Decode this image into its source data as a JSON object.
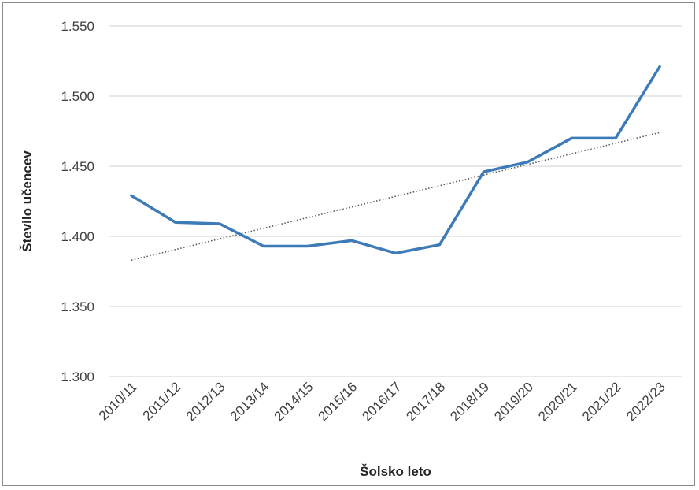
{
  "chart_data": {
    "type": "line",
    "title": "",
    "xlabel": "Šolsko leto",
    "ylabel": "Število učencev",
    "categories": [
      "2010/11",
      "2011/12",
      "2012/13",
      "2013/14",
      "2014/15",
      "2015/16",
      "2016/17",
      "2017/18",
      "2018/19",
      "2019/20",
      "2020/21",
      "2021/22",
      "2022/23"
    ],
    "series": [
      {
        "values": [
          1429,
          1410,
          1409,
          1393,
          1393,
          1397,
          1388,
          1394,
          1446,
          1453,
          1470,
          1470,
          1521
        ]
      }
    ],
    "trendline": {
      "type": "linear",
      "style": "dotted",
      "start": 1383,
      "end": 1474
    },
    "ylim": [
      1300,
      1550
    ],
    "yticks": [
      1300,
      1350,
      1400,
      1450,
      1500,
      1550
    ],
    "ytick_labels": [
      "1.300",
      "1.350",
      "1.400",
      "1.450",
      "1.500",
      "1.550"
    ],
    "grid": true,
    "legend": "none",
    "colors": {
      "series": "#3d7ab8",
      "trend": "#5a5a5a",
      "grid": "#d9d9d9"
    }
  }
}
